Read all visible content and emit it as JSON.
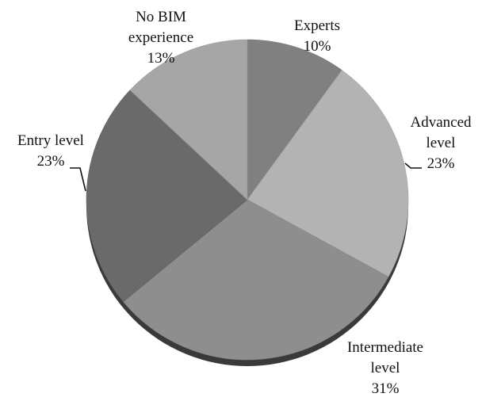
{
  "chart_data": {
    "type": "pie",
    "title": "",
    "start_angle_deg": 90,
    "direction": "clockwise",
    "style": "3d-tilted",
    "slices": [
      {
        "label_lines": [
          "Experts",
          "10%"
        ],
        "value": 10,
        "color": "#808080"
      },
      {
        "label_lines": [
          "Advanced",
          "level",
          "23%"
        ],
        "value": 23,
        "color": "#b3b3b3"
      },
      {
        "label_lines": [
          "Intermediate",
          "level",
          "31%"
        ],
        "value": 31,
        "color": "#8e8e8e"
      },
      {
        "label_lines": [
          "Entry level",
          "23%"
        ],
        "value": 23,
        "color": "#6a6a6a"
      },
      {
        "label_lines": [
          "No BIM",
          "experience",
          "13%"
        ],
        "value": 13,
        "color": "#a6a6a6"
      }
    ]
  }
}
